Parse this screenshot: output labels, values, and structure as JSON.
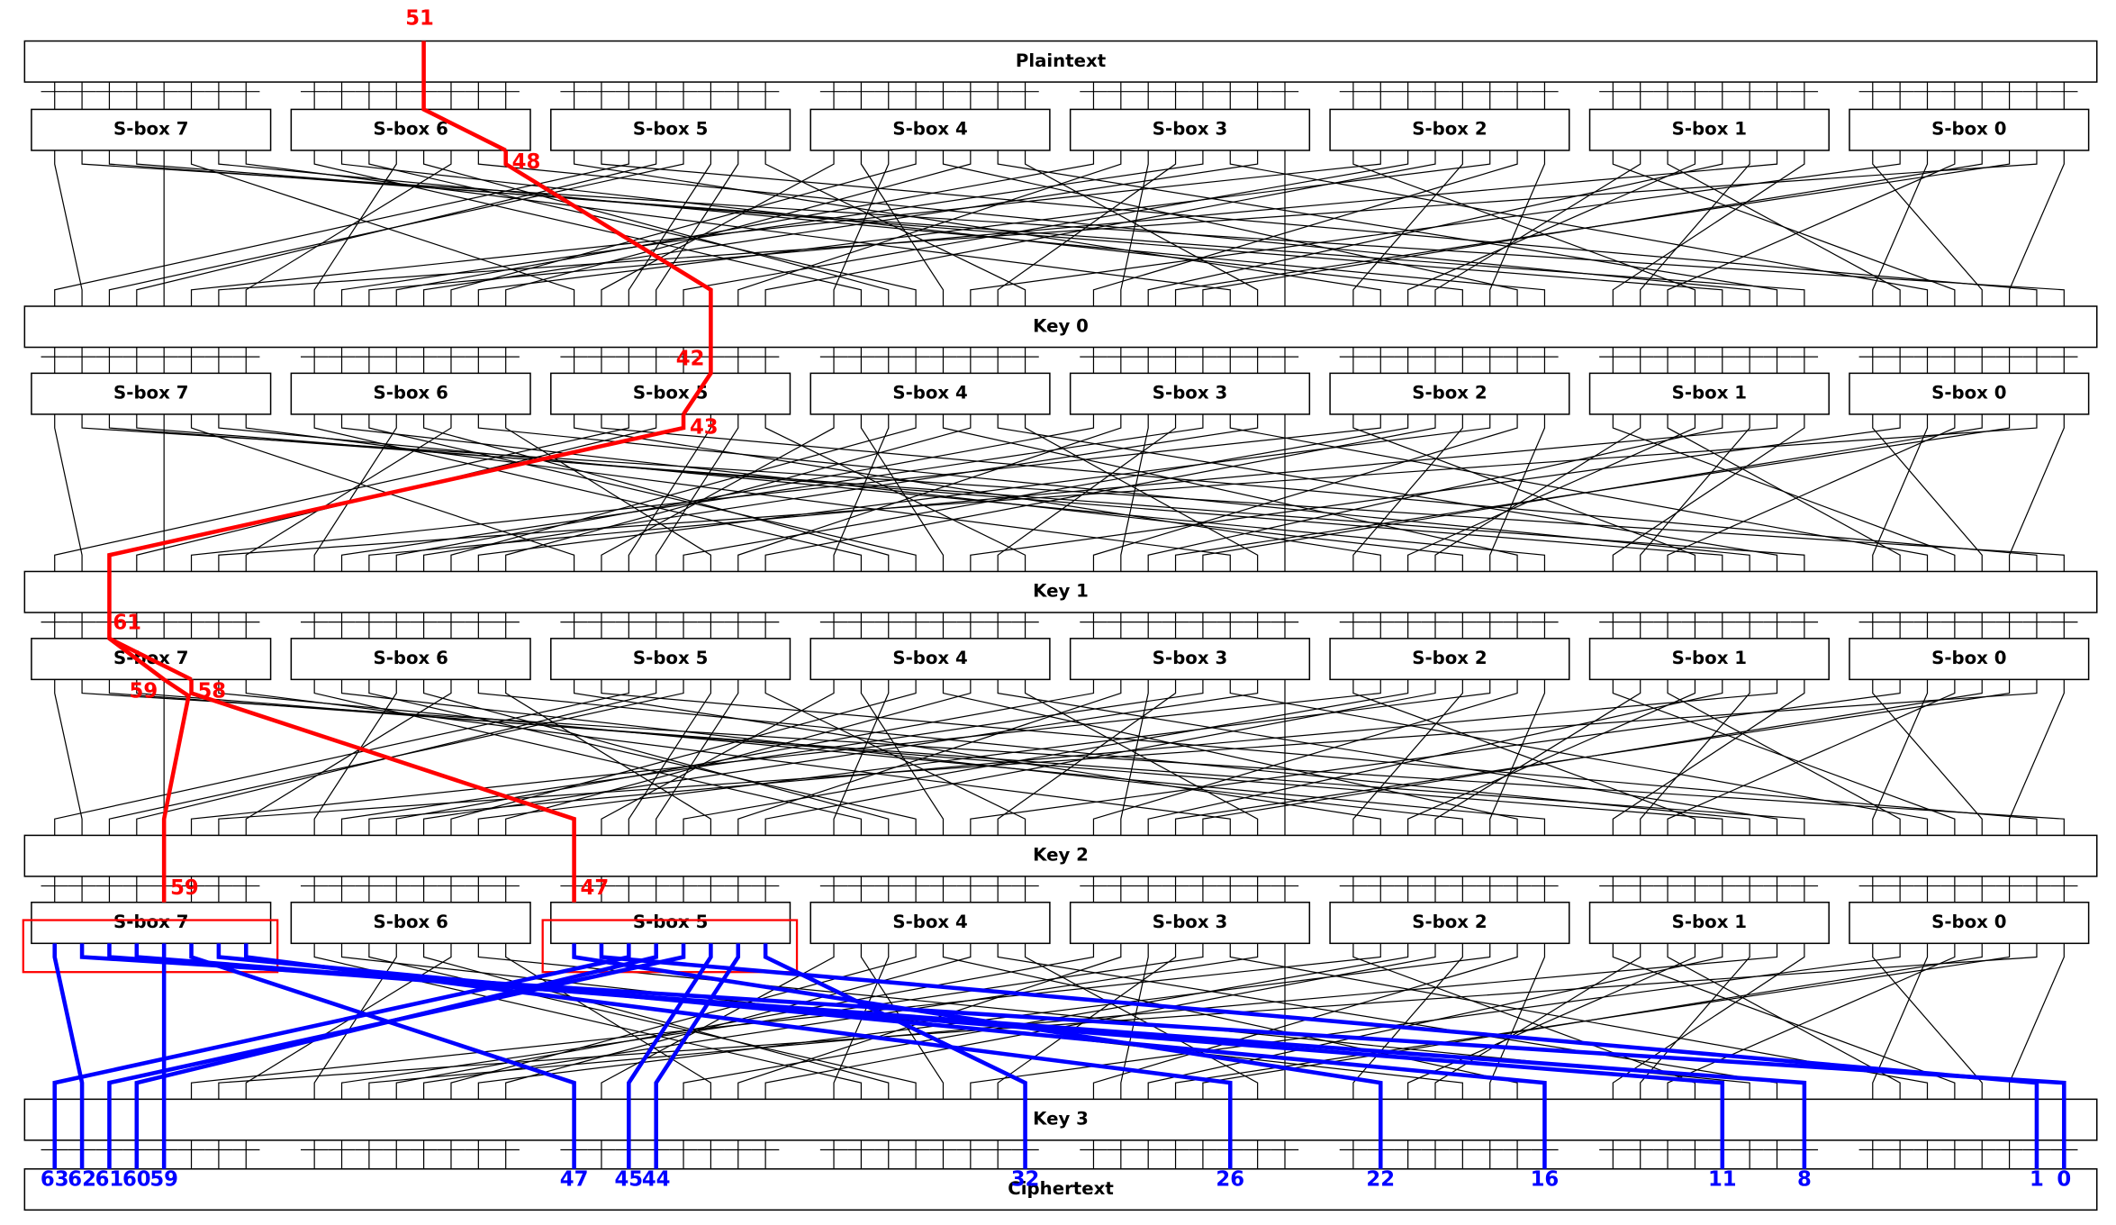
{
  "plaintext": "Plaintext",
  "rounds": [
    {
      "sboxes": [
        "S-box 7",
        "S-box 6",
        "S-box 5",
        "S-box 4",
        "S-box 3",
        "S-box 2",
        "S-box 1",
        "S-box 0"
      ],
      "key": "Key 0"
    },
    {
      "sboxes": [
        "S-box 7",
        "S-box 6",
        "S-box 5",
        "S-box 4",
        "S-box 3",
        "S-box 2",
        "S-box 1",
        "S-box 0"
      ],
      "key": "Key 1"
    },
    {
      "sboxes": [
        "S-box 7",
        "S-box 6",
        "S-box 5",
        "S-box 4",
        "S-box 3",
        "S-box 2",
        "S-box 1",
        "S-box 0"
      ],
      "key": "Key 2"
    },
    {
      "sboxes": [
        "S-box 7",
        "S-box 6",
        "S-box 5",
        "S-box 4",
        "S-box 3",
        "S-box 2",
        "S-box 1",
        "S-box 0"
      ],
      "key": "Key 3"
    }
  ],
  "ciphertext": "Ciphertext",
  "trail": [
    51,
    48,
    42,
    43,
    61,
    59,
    58,
    59,
    47
  ],
  "output_bits": [
    63,
    62,
    61,
    60,
    59,
    47,
    45,
    44,
    32,
    26,
    22,
    16,
    11,
    8,
    1,
    0
  ]
}
